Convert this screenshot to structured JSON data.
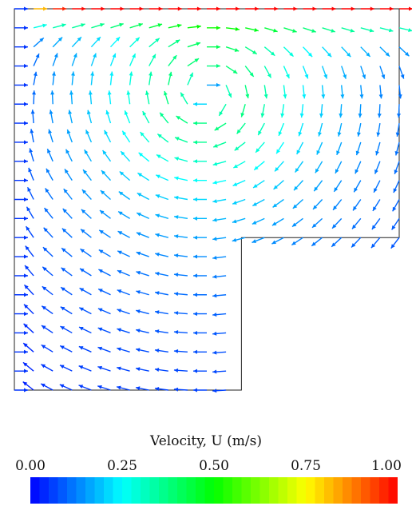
{
  "chart_data": {
    "type": "vector-field",
    "title": "",
    "colorbar": {
      "label": "Velocity, U (m/s)",
      "ticks": [
        "0.00",
        "0.25",
        "0.50",
        "0.75",
        "1.00"
      ],
      "range": [
        0.0,
        1.0
      ],
      "colormap": [
        "#0000ff",
        "#00ffff",
        "#00ff00",
        "#ffff00",
        "#ff0000"
      ]
    },
    "domain": {
      "shape": "L-shaped cavity",
      "outer": {
        "x": [
          0,
          1
        ],
        "y": [
          0,
          1
        ]
      },
      "notch": {
        "x": [
          0.59,
          1
        ],
        "y": [
          0,
          0.4
        ]
      }
    },
    "boundary_conditions": {
      "top_lid_speed": 1.0,
      "inlet_speed": 0.05
    },
    "vortex": {
      "center": [
        0.5,
        0.78
      ],
      "core_radius": 0.1,
      "peak_speed": 0.4
    },
    "grid": {
      "nx": 20,
      "ny": 20
    }
  }
}
